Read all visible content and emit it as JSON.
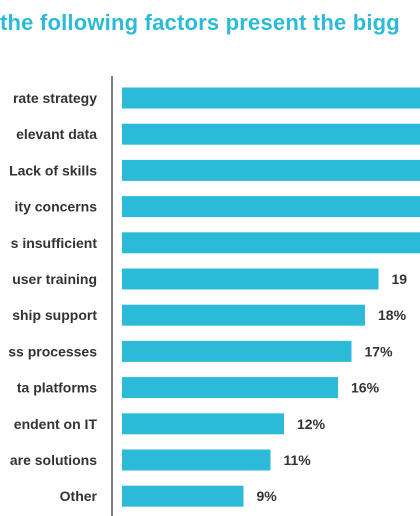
{
  "chart_data": {
    "type": "bar",
    "orientation": "horizontal",
    "title": "the following factors present the bigg",
    "categories": [
      "rate strategy",
      "elevant data",
      "Lack of skills",
      "ity concerns",
      "s insufficient",
      "user training",
      "ship support",
      "ss processes",
      "ta platforms",
      "endent on IT",
      "are solutions",
      "Other"
    ],
    "values": [
      null,
      null,
      null,
      null,
      null,
      19,
      18,
      17,
      16,
      12,
      11,
      9
    ],
    "value_labels": [
      "",
      "",
      "",
      "",
      "",
      "19",
      "18%",
      "17%",
      "16%",
      "12%",
      "11%",
      "9%"
    ],
    "bar_color": "#2bbbd8",
    "xlabel": "",
    "ylabel": "",
    "grid": false,
    "legend": "none"
  }
}
